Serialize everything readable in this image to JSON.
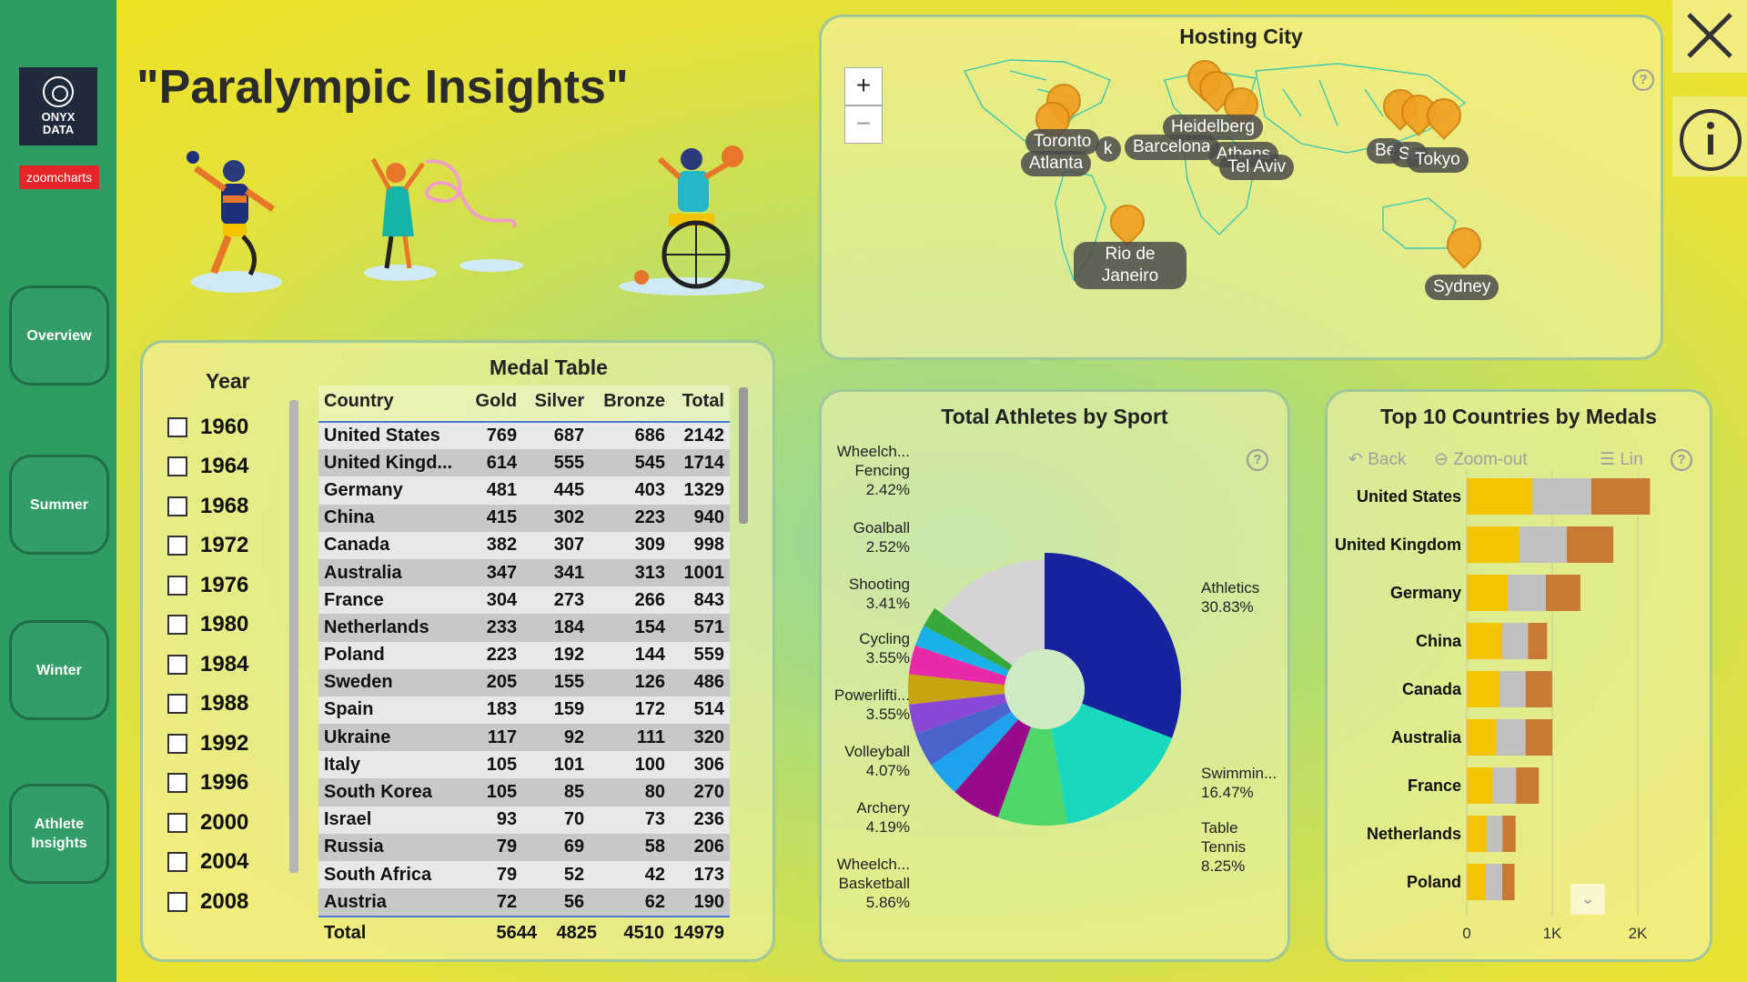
{
  "sidebar": {
    "logo_line1": "ONYX",
    "logo_line2": "DATA",
    "badge": "zoomcharts",
    "nav": [
      {
        "label": "Overview"
      },
      {
        "label": "Summer"
      },
      {
        "label": "Winter"
      },
      {
        "label": "Athlete Insights"
      }
    ]
  },
  "title": "\"Paralympic Insights\"",
  "year_filter": {
    "title": "Year",
    "years": [
      "1960",
      "1964",
      "1968",
      "1972",
      "1976",
      "1980",
      "1984",
      "1988",
      "1992",
      "1996",
      "2000",
      "2004",
      "2008"
    ]
  },
  "medal_table": {
    "title": "Medal Table",
    "columns": [
      "Country",
      "Gold",
      "Silver",
      "Bronze",
      "Total"
    ],
    "rows": [
      [
        "United States",
        "769",
        "687",
        "686",
        "2142"
      ],
      [
        "United Kingd...",
        "614",
        "555",
        "545",
        "1714"
      ],
      [
        "Germany",
        "481",
        "445",
        "403",
        "1329"
      ],
      [
        "China",
        "415",
        "302",
        "223",
        "940"
      ],
      [
        "Canada",
        "382",
        "307",
        "309",
        "998"
      ],
      [
        "Australia",
        "347",
        "341",
        "313",
        "1001"
      ],
      [
        "France",
        "304",
        "273",
        "266",
        "843"
      ],
      [
        "Netherlands",
        "233",
        "184",
        "154",
        "571"
      ],
      [
        "Poland",
        "223",
        "192",
        "144",
        "559"
      ],
      [
        "Sweden",
        "205",
        "155",
        "126",
        "486"
      ],
      [
        "Spain",
        "183",
        "159",
        "172",
        "514"
      ],
      [
        "Ukraine",
        "117",
        "92",
        "111",
        "320"
      ],
      [
        "Italy",
        "105",
        "101",
        "100",
        "306"
      ],
      [
        "South Korea",
        "105",
        "85",
        "80",
        "270"
      ],
      [
        "Israel",
        "93",
        "70",
        "73",
        "236"
      ],
      [
        "Russia",
        "79",
        "69",
        "58",
        "206"
      ],
      [
        "South Africa",
        "79",
        "52",
        "42",
        "173"
      ],
      [
        "Austria",
        "72",
        "56",
        "62",
        "190"
      ]
    ],
    "total": [
      "Total",
      "5644",
      "4825",
      "4510",
      "14979"
    ]
  },
  "map": {
    "title": "Hosting City",
    "zoom_in": "+",
    "zoom_out": "−",
    "help": "?",
    "cities": [
      "Toronto",
      "Atlanta",
      "k",
      "Heidelberg",
      "Barcelona",
      "Athens",
      "Tel Aviv",
      "Be",
      "Se",
      "Tokyo",
      "Rio de Janeiro",
      "Sydney"
    ]
  },
  "pie": {
    "title": "Total Athletes by Sport",
    "help": "?",
    "labels": [
      {
        "name": "Wheelch... Fencing",
        "pct": "2.42%"
      },
      {
        "name": "Goalball",
        "pct": "2.52%"
      },
      {
        "name": "Shooting",
        "pct": "3.41%"
      },
      {
        "name": "Cycling",
        "pct": "3.55%"
      },
      {
        "name": "Powerlifti...",
        "pct": "3.55%"
      },
      {
        "name": "Volleyball",
        "pct": "4.07%"
      },
      {
        "name": "Archery",
        "pct": "4.19%"
      },
      {
        "name": "Wheelch... Basketball",
        "pct": "5.86%"
      },
      {
        "name": "Athletics",
        "pct": "30.83%"
      },
      {
        "name": "Swimmin...",
        "pct": "16.47%"
      },
      {
        "name": "Table Tennis",
        "pct": "8.25%"
      }
    ]
  },
  "bars": {
    "title": "Top 10 Countries by Medals",
    "toolbar": {
      "back": "Back",
      "zoom_out": "Zoom-out",
      "lin": "Lin",
      "help": "?"
    },
    "ticks": [
      "0",
      "1K",
      "2K"
    ]
  },
  "chart_data": [
    {
      "type": "pie",
      "title": "Total Athletes by Sport",
      "categories": [
        "Athletics",
        "Swimmin...",
        "Table Tennis",
        "Wheelch... Basketball",
        "Archery",
        "Volleyball",
        "Powerlifti...",
        "Cycling",
        "Shooting",
        "Goalball",
        "Wheelch... Fencing"
      ],
      "values": [
        30.83,
        16.47,
        8.25,
        5.86,
        4.19,
        4.07,
        3.55,
        3.55,
        3.41,
        2.52,
        2.42
      ],
      "colors": [
        "#16229e",
        "#19d8c0",
        "#4ed86a",
        "#970a8c",
        "#1ea2ee",
        "#4a63cf",
        "#8a48d6",
        "#c8a410",
        "#e829a8",
        "#1ab0e8",
        "#38a838"
      ]
    },
    {
      "type": "bar",
      "title": "Top 10 Countries by Medals",
      "categories": [
        "United States",
        "United Kingdom",
        "Germany",
        "China",
        "Canada",
        "Australia",
        "France",
        "Netherlands",
        "Poland"
      ],
      "series": [
        {
          "name": "Gold",
          "values": [
            769,
            614,
            481,
            415,
            382,
            347,
            304,
            233,
            223
          ]
        },
        {
          "name": "Silver",
          "values": [
            687,
            555,
            445,
            302,
            307,
            341,
            273,
            184,
            192
          ]
        },
        {
          "name": "Bronze",
          "values": [
            686,
            545,
            403,
            223,
            309,
            313,
            266,
            154,
            144
          ]
        }
      ],
      "colors": [
        "#f5c400",
        "#c0c0c0",
        "#c87a34"
      ],
      "xlim": [
        0,
        2200
      ]
    }
  ]
}
